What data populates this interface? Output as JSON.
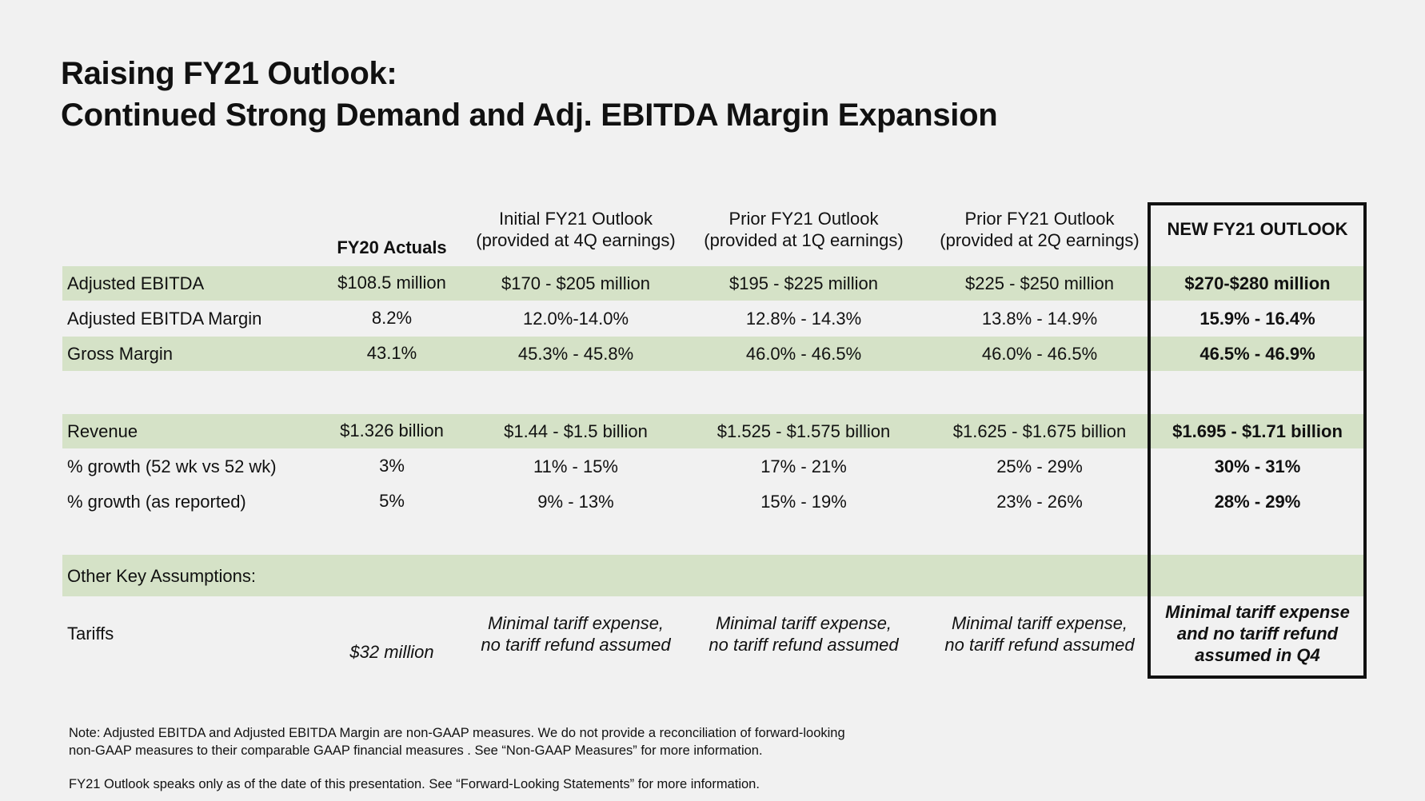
{
  "title": {
    "line1": "Raising FY21 Outlook:",
    "line2": "Continued Strong Demand and Adj. EBITDA Margin Expansion"
  },
  "headers": {
    "fy20": "FY20 Actuals",
    "initial_l1": "Initial FY21 Outlook",
    "initial_l2": "(provided at 4Q earnings)",
    "prior1_l1": "Prior FY21 Outlook",
    "prior1_l2": "(provided at 1Q earnings)",
    "prior2_l1": "Prior FY21 Outlook",
    "prior2_l2": "(provided at 2Q earnings)",
    "new": "NEW FY21 OUTLOOK"
  },
  "rows": {
    "ebitda": {
      "label": "Adjusted EBITDA",
      "fy20": "$108.5 million",
      "initial": "$170 - $205 million",
      "prior1": "$195  - $225 million",
      "prior2": "$225  - $250 million",
      "new": "$270-$280 million"
    },
    "ebitda_margin": {
      "label": "Adjusted EBITDA Margin",
      "fy20": "8.2%",
      "initial": "12.0%-14.0%",
      "prior1": "12.8% - 14.3%",
      "prior2": "13.8% - 14.9%",
      "new": "15.9% - 16.4%"
    },
    "gross_margin": {
      "label": "Gross Margin",
      "fy20": "43.1%",
      "initial": "45.3% - 45.8%",
      "prior1": "46.0% - 46.5%",
      "prior2": "46.0% - 46.5%",
      "new": "46.5% - 46.9%"
    },
    "revenue": {
      "label": "Revenue",
      "fy20": "$1.326 billion",
      "initial": "$1.44 - $1.5 billion",
      "prior1": "$1.525 - $1.575 billion",
      "prior2": "$1.625 - $1.675 billion",
      "new": "$1.695 - $1.71 billion"
    },
    "growth52": {
      "label": "% growth (52 wk vs 52 wk)",
      "fy20": "3%",
      "initial": "11% - 15%",
      "prior1": "17% - 21%",
      "prior2": "25% - 29%",
      "new": "30% - 31%"
    },
    "growth_rep": {
      "label": "% growth (as reported)",
      "fy20": "5%",
      "initial": "9% - 13%",
      "prior1": "15% - 19%",
      "prior2": "23% - 26%",
      "new": "28% - 29%"
    },
    "other": {
      "label": "Other Key Assumptions:"
    },
    "tariffs": {
      "label": "Tariffs",
      "fy20": "$32 million",
      "initial_l1": "Minimal tariff expense,",
      "initial_l2": "no tariff refund assumed",
      "prior1_l1": "Minimal tariff expense,",
      "prior1_l2": "no tariff refund assumed",
      "prior2_l1": "Minimal tariff expense,",
      "prior2_l2": "no tariff refund assumed",
      "new_l1": "Minimal tariff expense",
      "new_l2": "and no tariff refund",
      "new_l3": "assumed in Q4"
    }
  },
  "notes": {
    "line1": "Note: Adjusted EBITDA and Adjusted EBITDA Margin are non-GAAP measures.  We do not provide a reconciliation of forward-looking",
    "line2": "non-GAAP measures to their comparable GAAP financial measures . See “Non-GAAP Measures” for more information.",
    "line3": "FY21 Outlook speaks only as of the date of this presentation.  See “Forward-Looking Statements” for more information."
  },
  "colors": {
    "band": "#d5e2c7",
    "background": "#f1f1f1",
    "border": "#111111"
  }
}
